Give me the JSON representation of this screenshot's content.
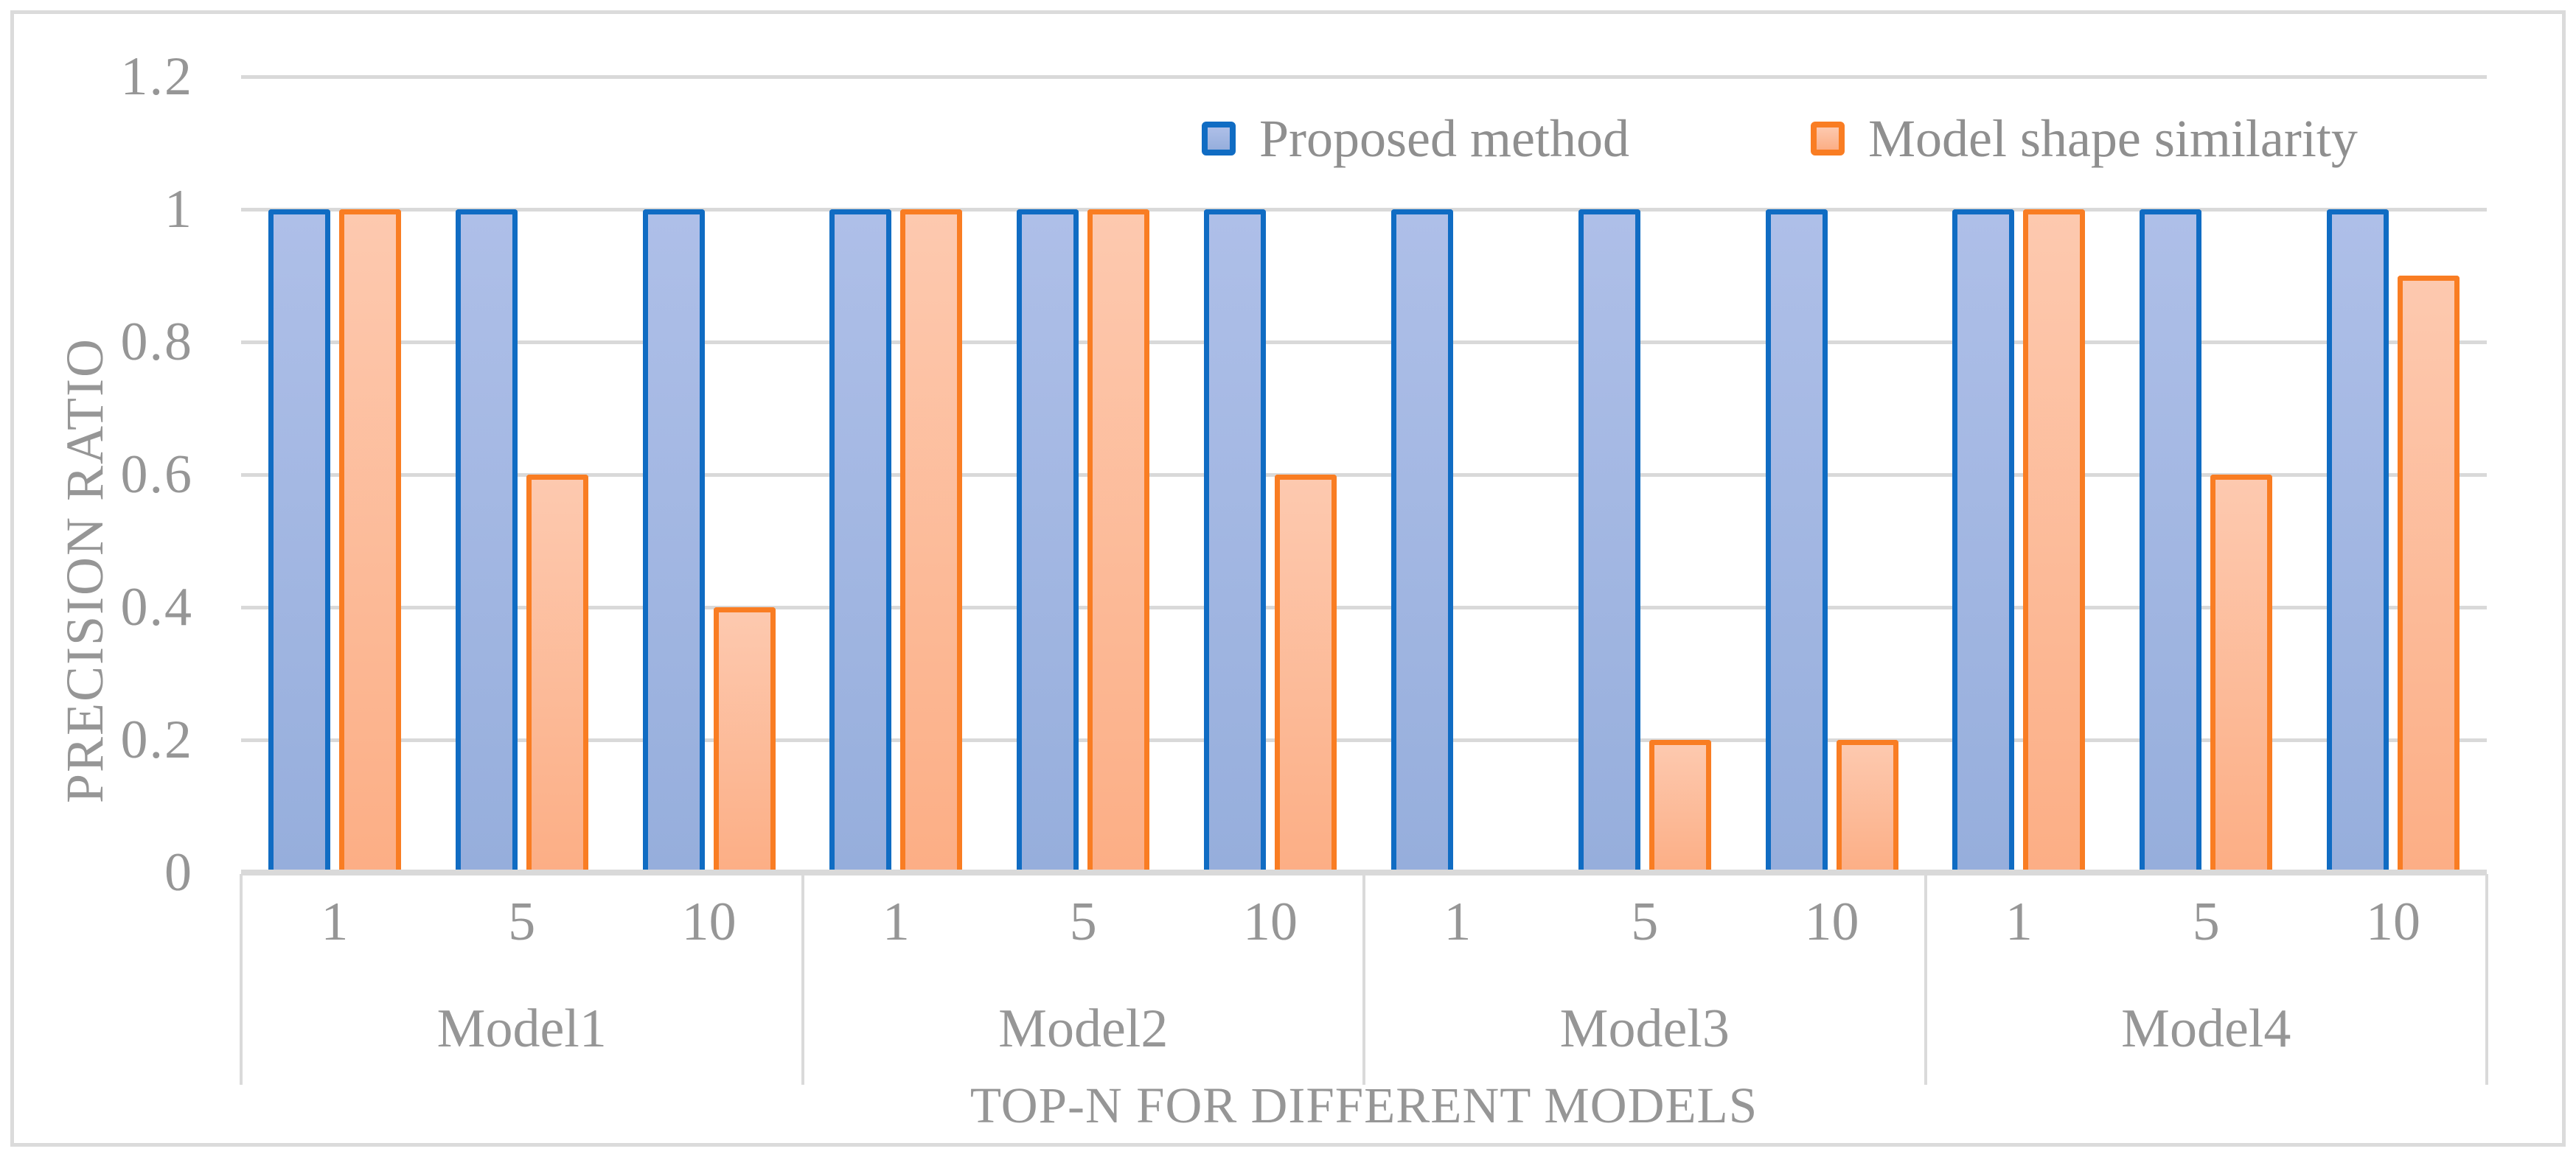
{
  "style": {
    "text_color": "#969696",
    "grid_color": "#D9D9D9",
    "frame_color": "#DBDBDB",
    "background": "#FFFFFF"
  },
  "chart_data": {
    "type": "bar",
    "title": "",
    "ylabel": "PRECISION RATIO",
    "xlabel": "TOP-N FOR DIFFERENT MODELS",
    "ylim": [
      0,
      1.2
    ],
    "grid": true,
    "legend_position": "top-right",
    "yticks": [
      {
        "label": "1.2",
        "value": 1.2
      },
      {
        "label": "1",
        "value": 1.0
      },
      {
        "label": "0.8",
        "value": 0.8
      },
      {
        "label": "0.6",
        "value": 0.6
      },
      {
        "label": "0.4",
        "value": 0.4
      },
      {
        "label": "0.2",
        "value": 0.2
      },
      {
        "label": "0",
        "value": 0
      }
    ],
    "groups": [
      {
        "label": "Model1",
        "categories": [
          "1",
          "5",
          "10"
        ]
      },
      {
        "label": "Model2",
        "categories": [
          "1",
          "5",
          "10"
        ]
      },
      {
        "label": "Model3",
        "categories": [
          "1",
          "5",
          "10"
        ]
      },
      {
        "label": "Model4",
        "categories": [
          "1",
          "5",
          "10"
        ]
      }
    ],
    "series": [
      {
        "name": "Proposed method",
        "border_color": "#106CC3",
        "fill_top": "#AEBFE8",
        "fill_bottom": "#96AEDC",
        "values": [
          [
            1,
            1,
            1
          ],
          [
            1,
            1,
            1
          ],
          [
            1,
            1,
            1
          ],
          [
            1,
            1,
            1
          ]
        ]
      },
      {
        "name": "Model shape similarity",
        "border_color": "#F97D23",
        "fill_top": "#FDC9AF",
        "fill_bottom": "#FCAE85",
        "values": [
          [
            1,
            0.6,
            0.4
          ],
          [
            1,
            1,
            0.6
          ],
          [
            0,
            0.2,
            0.2
          ],
          [
            1,
            0.6,
            0.9
          ]
        ]
      }
    ]
  }
}
